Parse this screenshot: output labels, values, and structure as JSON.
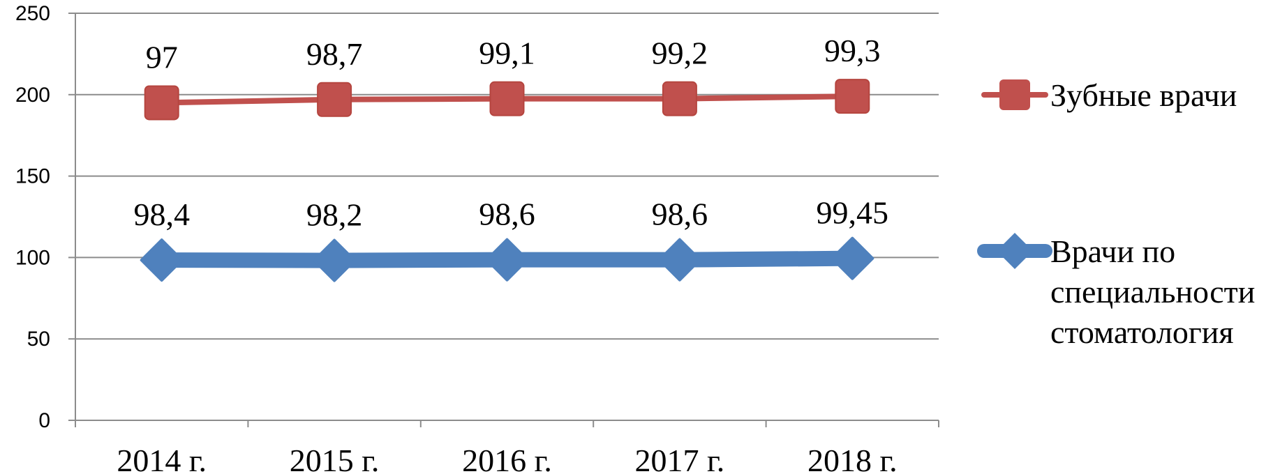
{
  "chart_data": {
    "type": "line",
    "categories": [
      "2014 г.",
      "2015 г.",
      "2016 г.",
      "2017 г.",
      "2018 г."
    ],
    "ylim": [
      0,
      250
    ],
    "yticks": [
      "0",
      "50",
      "100",
      "150",
      "200",
      "250"
    ],
    "grid": true,
    "legend_position": "right",
    "series": [
      {
        "name": "Зубные врачи",
        "plot_values": [
          195,
          197,
          197.5,
          197.5,
          199
        ],
        "data_labels": [
          "97",
          "98,7",
          "99,1",
          "99,2",
          "99,3"
        ],
        "color": "#c0504d",
        "marker": "square"
      },
      {
        "name_lines": [
          "Врачи по",
          "специальности",
          "стоматология"
        ],
        "plot_values": [
          98.4,
          98.2,
          98.6,
          98.6,
          99.45
        ],
        "data_labels": [
          "98,4",
          "98,2",
          "98,6",
          "98,6",
          "99,45"
        ],
        "color": "#4f81bd",
        "marker": "diamond"
      }
    ]
  }
}
